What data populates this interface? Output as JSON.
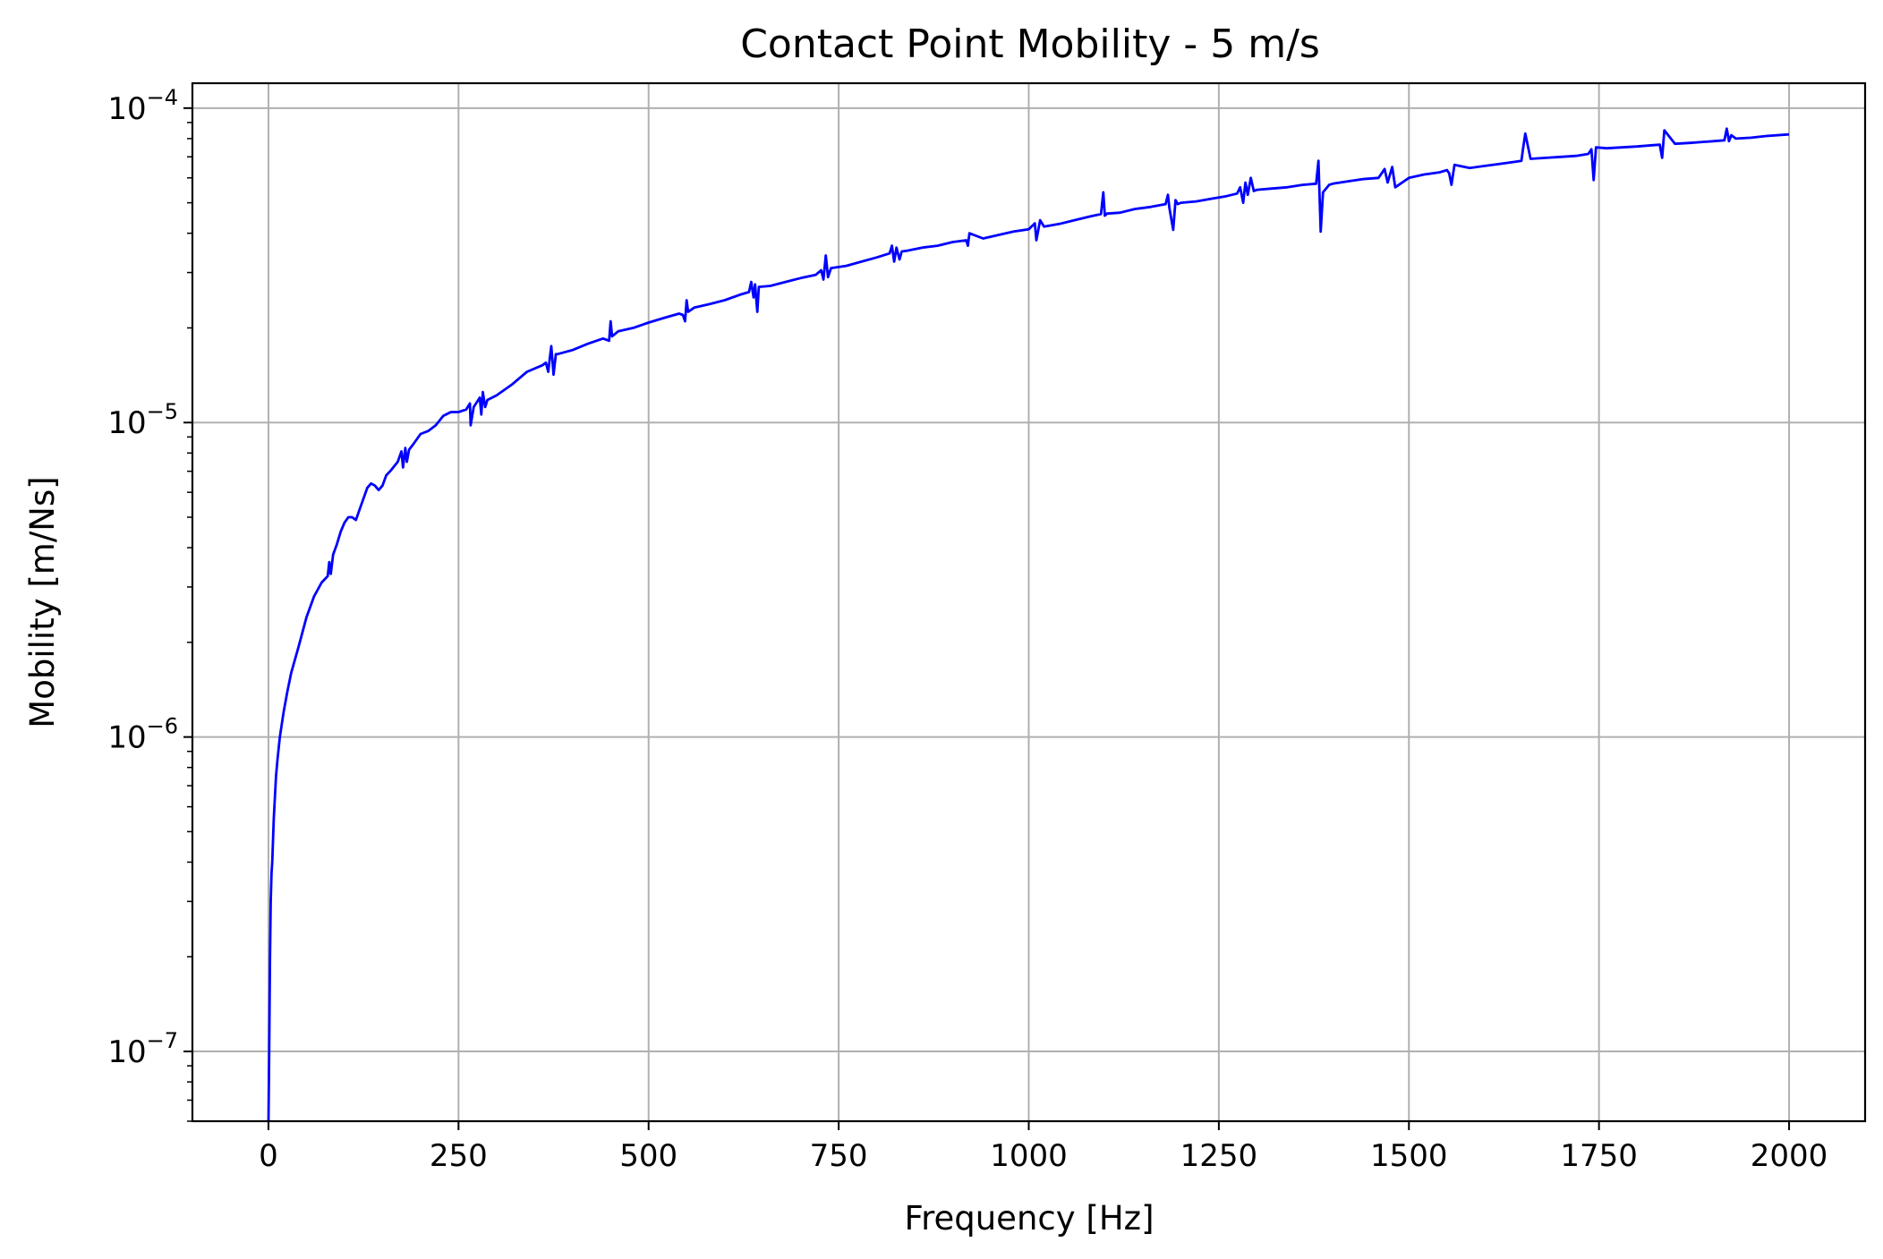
{
  "chart_data": {
    "type": "line",
    "title": "Contact Point Mobility - 5 m/s",
    "xlabel": "Frequency [Hz]",
    "ylabel": "Mobility [m/Ns]",
    "xlim": [
      -100,
      2100
    ],
    "ylim": [
      6e-08,
      0.00012
    ],
    "yscale": "log",
    "grid": true,
    "line_color": "#0000ff",
    "grid_color": "#b0b0b0",
    "x_ticks": [
      0,
      250,
      500,
      750,
      1000,
      1250,
      1500,
      1750,
      2000
    ],
    "x_tick_labels": [
      "0",
      "250",
      "500",
      "750",
      "1000",
      "1250",
      "1500",
      "1750",
      "2000"
    ],
    "y_ticks": [
      {
        "value": 1e-07,
        "base": "10",
        "exp": "−7"
      },
      {
        "value": 1e-06,
        "base": "10",
        "exp": "−6"
      },
      {
        "value": 1e-05,
        "base": "10",
        "exp": "−5"
      },
      {
        "value": 0.0001,
        "base": "10",
        "exp": "−4"
      }
    ],
    "series": [
      {
        "values": {
          "x": [
            0,
            1,
            2,
            3,
            4,
            5,
            7,
            10,
            12,
            15,
            20,
            25,
            30,
            40,
            50,
            60,
            70,
            78,
            80,
            82,
            85,
            90,
            95,
            100,
            105,
            110,
            115,
            120,
            130,
            135,
            140,
            145,
            150,
            155,
            160,
            170,
            175,
            177,
            180,
            182,
            185,
            190,
            200,
            210,
            220,
            230,
            240,
            250,
            260,
            265,
            266,
            270,
            278,
            280,
            282,
            285,
            288,
            300,
            320,
            340,
            360,
            365,
            368,
            370,
            372,
            375,
            378,
            380,
            400,
            420,
            440,
            448,
            450,
            452,
            460,
            480,
            500,
            520,
            540,
            545,
            548,
            550,
            552,
            560,
            580,
            600,
            620,
            632,
            635,
            638,
            640,
            643,
            645,
            660,
            680,
            700,
            720,
            727,
            730,
            733,
            736,
            740,
            760,
            780,
            800,
            817,
            820,
            823,
            826,
            830,
            833,
            840,
            860,
            880,
            900,
            918,
            920,
            922,
            940,
            960,
            980,
            1000,
            1008,
            1010,
            1015,
            1020,
            1040,
            1060,
            1080,
            1095,
            1098,
            1100,
            1103,
            1120,
            1140,
            1160,
            1180,
            1183,
            1185,
            1190,
            1193,
            1196,
            1200,
            1220,
            1240,
            1260,
            1274,
            1278,
            1282,
            1285,
            1288,
            1292,
            1296,
            1300,
            1320,
            1340,
            1360,
            1378,
            1381,
            1384,
            1387,
            1395,
            1400,
            1420,
            1440,
            1460,
            1468,
            1472,
            1478,
            1482,
            1500,
            1520,
            1540,
            1550,
            1553,
            1556,
            1560,
            1580,
            1600,
            1620,
            1640,
            1648,
            1650,
            1653,
            1660,
            1680,
            1700,
            1720,
            1736,
            1740,
            1743,
            1746,
            1760,
            1780,
            1800,
            1820,
            1830,
            1833,
            1836,
            1850,
            1870,
            1900,
            1915,
            1918,
            1921,
            1924,
            1930,
            1950,
            1970,
            2000
          ],
          "y": [
            6e-08,
            1e-07,
            2e-07,
            3e-07,
            3.7e-07,
            4e-07,
            5.5e-07,
            7.5e-07,
            8.5e-07,
            1e-06,
            1.2e-06,
            1.4e-06,
            1.6e-06,
            1.95e-06,
            2.4e-06,
            2.8e-06,
            3.1e-06,
            3.25e-06,
            3.6e-06,
            3.3e-06,
            3.8e-06,
            4.1e-06,
            4.5e-06,
            4.8e-06,
            5e-06,
            5e-06,
            4.9e-06,
            5.3e-06,
            6.2e-06,
            6.4e-06,
            6.3e-06,
            6.1e-06,
            6.3e-06,
            6.8e-06,
            7e-06,
            7.5e-06,
            8.1e-06,
            7.2e-06,
            8.3e-06,
            7.5e-06,
            8.2e-06,
            8.5e-06,
            9.2e-06,
            9.4e-06,
            9.8e-06,
            1.05e-05,
            1.08e-05,
            1.08e-05,
            1.1e-05,
            1.15e-05,
            9.8e-06,
            1.12e-05,
            1.2e-05,
            1.06e-05,
            1.25e-05,
            1.12e-05,
            1.18e-05,
            1.22e-05,
            1.32e-05,
            1.45e-05,
            1.52e-05,
            1.55e-05,
            1.45e-05,
            1.6e-05,
            1.75e-05,
            1.42e-05,
            1.65e-05,
            1.65e-05,
            1.7e-05,
            1.78e-05,
            1.85e-05,
            1.82e-05,
            2.1e-05,
            1.88e-05,
            1.95e-05,
            2e-05,
            2.08e-05,
            2.15e-05,
            2.22e-05,
            2.2e-05,
            2.1e-05,
            2.45e-05,
            2.25e-05,
            2.32e-05,
            2.38e-05,
            2.45e-05,
            2.55e-05,
            2.6e-05,
            2.8e-05,
            2.5e-05,
            2.75e-05,
            2.25e-05,
            2.7e-05,
            2.72e-05,
            2.8e-05,
            2.88e-05,
            2.95e-05,
            3.05e-05,
            2.85e-05,
            3.4e-05,
            2.9e-05,
            3.1e-05,
            3.15e-05,
            3.25e-05,
            3.35e-05,
            3.45e-05,
            3.65e-05,
            3.25e-05,
            3.6e-05,
            3.3e-05,
            3.5e-05,
            3.52e-05,
            3.6e-05,
            3.65e-05,
            3.75e-05,
            3.8e-05,
            3.65e-05,
            4e-05,
            3.85e-05,
            3.95e-05,
            4.05e-05,
            4.12e-05,
            4.3e-05,
            3.8e-05,
            4.4e-05,
            4.2e-05,
            4.28e-05,
            4.4e-05,
            4.52e-05,
            4.6e-05,
            5.4e-05,
            4.55e-05,
            4.62e-05,
            4.65e-05,
            4.78e-05,
            4.85e-05,
            4.95e-05,
            5.3e-05,
            4.8e-05,
            4.1e-05,
            5.1e-05,
            4.95e-05,
            5e-05,
            5.05e-05,
            5.15e-05,
            5.25e-05,
            5.35e-05,
            5.6e-05,
            5e-05,
            5.8e-05,
            5.3e-05,
            6e-05,
            5.45e-05,
            5.5e-05,
            5.55e-05,
            5.6e-05,
            5.7e-05,
            5.75e-05,
            6.8e-05,
            4.05e-05,
            5.4e-05,
            5.7e-05,
            5.75e-05,
            5.85e-05,
            5.95e-05,
            6e-05,
            6.4e-05,
            5.8e-05,
            6.5e-05,
            5.6e-05,
            6e-05,
            6.15e-05,
            6.25e-05,
            6.35e-05,
            6.2e-05,
            5.7e-05,
            6.6e-05,
            6.45e-05,
            6.55e-05,
            6.65e-05,
            6.75e-05,
            6.8e-05,
            7.4e-05,
            8.3e-05,
            6.9e-05,
            6.95e-05,
            7e-05,
            7.05e-05,
            7.15e-05,
            7.4e-05,
            5.9e-05,
            7.5e-05,
            7.45e-05,
            7.5e-05,
            7.55e-05,
            7.62e-05,
            7.65e-05,
            6.95e-05,
            8.5e-05,
            7.7e-05,
            7.75e-05,
            7.85e-05,
            7.9e-05,
            8.6e-05,
            7.85e-05,
            8.2e-05,
            8e-05,
            8.05e-05,
            8.15e-05,
            8.25e-05
          ]
        }
      }
    ]
  }
}
